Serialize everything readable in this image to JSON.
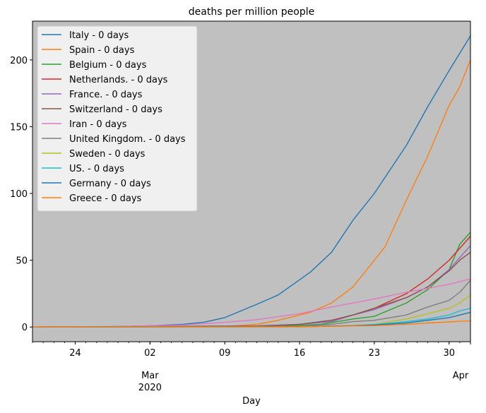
{
  "chart_data": {
    "type": "line",
    "title": "deaths per million people",
    "xlabel": "Day",
    "ylabel": "",
    "x_start": "2020-02-20",
    "x_end": "2020-04-01",
    "ylim": [
      -11,
      229
    ],
    "yticks": [
      0,
      50,
      100,
      150,
      200
    ],
    "xticks": [
      {
        "date": "2020-02-24",
        "label": "24"
      },
      {
        "date": "2020-03-02",
        "label": "02"
      },
      {
        "date": "2020-03-09",
        "label": "09"
      },
      {
        "date": "2020-03-16",
        "label": "16"
      },
      {
        "date": "2020-03-23",
        "label": "23"
      },
      {
        "date": "2020-03-30",
        "label": "30"
      }
    ],
    "month_labels": [
      {
        "date": "2020-03-02",
        "lines": [
          "Mar",
          "2020"
        ]
      },
      {
        "date": "2020-04-01",
        "lines": [
          "Apr"
        ]
      }
    ],
    "grid": false,
    "background": "#c0c0c0",
    "legend_position": "upper-left",
    "series": [
      {
        "name": "Italy - 0 days",
        "color": "#1f77b4",
        "points": [
          [
            "2020-02-20",
            0
          ],
          [
            "2020-02-28",
            0.3
          ],
          [
            "2020-03-02",
            0.9
          ],
          [
            "2020-03-05",
            2
          ],
          [
            "2020-03-07",
            3.5
          ],
          [
            "2020-03-09",
            7
          ],
          [
            "2020-03-12",
            17
          ],
          [
            "2020-03-14",
            24
          ],
          [
            "2020-03-17",
            41
          ],
          [
            "2020-03-19",
            56
          ],
          [
            "2020-03-21",
            80
          ],
          [
            "2020-03-23",
            100
          ],
          [
            "2020-03-26",
            136
          ],
          [
            "2020-03-28",
            165
          ],
          [
            "2020-03-30",
            192
          ],
          [
            "2020-04-01",
            218
          ]
        ]
      },
      {
        "name": "Spain - 0 days",
        "color": "#ff7f0e",
        "points": [
          [
            "2020-02-20",
            0
          ],
          [
            "2020-03-09",
            0.4
          ],
          [
            "2020-03-12",
            2
          ],
          [
            "2020-03-14",
            5
          ],
          [
            "2020-03-17",
            11
          ],
          [
            "2020-03-19",
            18
          ],
          [
            "2020-03-21",
            30
          ],
          [
            "2020-03-23",
            50
          ],
          [
            "2020-03-24",
            60
          ],
          [
            "2020-03-26",
            95
          ],
          [
            "2020-03-28",
            128
          ],
          [
            "2020-03-30",
            166
          ],
          [
            "2020-03-31",
            180
          ],
          [
            "2020-04-01",
            200
          ]
        ]
      },
      {
        "name": "Belgium - 0 days",
        "color": "#2ca02c",
        "points": [
          [
            "2020-02-20",
            0
          ],
          [
            "2020-03-14",
            0.5
          ],
          [
            "2020-03-18",
            2
          ],
          [
            "2020-03-21",
            6
          ],
          [
            "2020-03-23",
            8
          ],
          [
            "2020-03-26",
            18
          ],
          [
            "2020-03-28",
            28
          ],
          [
            "2020-03-30",
            43
          ],
          [
            "2020-03-31",
            62
          ],
          [
            "2020-04-01",
            71
          ]
        ]
      },
      {
        "name": "Netherlands. - 0 days",
        "color": "#d62728",
        "points": [
          [
            "2020-02-20",
            0
          ],
          [
            "2020-03-12",
            0.5
          ],
          [
            "2020-03-16",
            2
          ],
          [
            "2020-03-19",
            5
          ],
          [
            "2020-03-21",
            9
          ],
          [
            "2020-03-23",
            14
          ],
          [
            "2020-03-26",
            25
          ],
          [
            "2020-03-28",
            36
          ],
          [
            "2020-03-30",
            50
          ],
          [
            "2020-03-31",
            59
          ],
          [
            "2020-04-01",
            68
          ]
        ]
      },
      {
        "name": "France. - 0 days",
        "color": "#9467bd",
        "points": [
          [
            "2020-02-20",
            0
          ],
          [
            "2020-03-12",
            0.8
          ],
          [
            "2020-03-16",
            2
          ],
          [
            "2020-03-19",
            4
          ],
          [
            "2020-03-21",
            9
          ],
          [
            "2020-03-23",
            13
          ],
          [
            "2020-03-26",
            22
          ],
          [
            "2020-03-28",
            30
          ],
          [
            "2020-03-30",
            43
          ],
          [
            "2020-03-31",
            52
          ],
          [
            "2020-04-01",
            61
          ]
        ]
      },
      {
        "name": "Switzerland - 0 days",
        "color": "#8c564b",
        "points": [
          [
            "2020-02-20",
            0
          ],
          [
            "2020-03-12",
            0.8
          ],
          [
            "2020-03-16",
            2
          ],
          [
            "2020-03-19",
            5
          ],
          [
            "2020-03-21",
            9
          ],
          [
            "2020-03-23",
            14
          ],
          [
            "2020-03-26",
            22
          ],
          [
            "2020-03-28",
            30
          ],
          [
            "2020-03-30",
            42
          ],
          [
            "2020-03-31",
            50
          ],
          [
            "2020-04-01",
            56
          ]
        ]
      },
      {
        "name": "Iran - 0 days",
        "color": "#e377c2",
        "points": [
          [
            "2020-02-20",
            0
          ],
          [
            "2020-02-28",
            0.4
          ],
          [
            "2020-03-02",
            0.9
          ],
          [
            "2020-03-05",
            1.5
          ],
          [
            "2020-03-09",
            3.5
          ],
          [
            "2020-03-12",
            5.5
          ],
          [
            "2020-03-16",
            10
          ],
          [
            "2020-03-19",
            15
          ],
          [
            "2020-03-23",
            21
          ],
          [
            "2020-03-26",
            26
          ],
          [
            "2020-03-30",
            32
          ],
          [
            "2020-04-01",
            36
          ]
        ]
      },
      {
        "name": "United Kingdom. - 0 days",
        "color": "#7f7f7f",
        "points": [
          [
            "2020-02-20",
            0
          ],
          [
            "2020-03-16",
            0.6
          ],
          [
            "2020-03-19",
            2
          ],
          [
            "2020-03-21",
            4
          ],
          [
            "2020-03-23",
            5
          ],
          [
            "2020-03-26",
            9
          ],
          [
            "2020-03-28",
            15
          ],
          [
            "2020-03-30",
            20
          ],
          [
            "2020-03-31",
            26
          ],
          [
            "2020-04-01",
            35
          ]
        ]
      },
      {
        "name": "Sweden - 0 days",
        "color": "#bcbd22",
        "points": [
          [
            "2020-02-20",
            0
          ],
          [
            "2020-03-16",
            0.3
          ],
          [
            "2020-03-21",
            1
          ],
          [
            "2020-03-23",
            2
          ],
          [
            "2020-03-26",
            6
          ],
          [
            "2020-03-28",
            10
          ],
          [
            "2020-03-30",
            14
          ],
          [
            "2020-03-31",
            18
          ],
          [
            "2020-04-01",
            24
          ]
        ]
      },
      {
        "name": "US. - 0 days",
        "color": "#17becf",
        "points": [
          [
            "2020-02-20",
            0
          ],
          [
            "2020-03-16",
            0.2
          ],
          [
            "2020-03-21",
            1
          ],
          [
            "2020-03-23",
            1.8
          ],
          [
            "2020-03-26",
            4
          ],
          [
            "2020-03-28",
            6
          ],
          [
            "2020-03-30",
            9
          ],
          [
            "2020-03-31",
            12
          ],
          [
            "2020-04-01",
            14
          ]
        ]
      },
      {
        "name": "Germany - 0 days",
        "color": "#1f77b4",
        "points": [
          [
            "2020-02-20",
            0
          ],
          [
            "2020-03-16",
            0.2
          ],
          [
            "2020-03-21",
            1
          ],
          [
            "2020-03-23",
            1.5
          ],
          [
            "2020-03-26",
            3
          ],
          [
            "2020-03-28",
            5
          ],
          [
            "2020-03-30",
            7
          ],
          [
            "2020-03-31",
            9
          ],
          [
            "2020-04-01",
            11
          ]
        ]
      },
      {
        "name": "Greece - 0 days",
        "color": "#ff7f0e",
        "points": [
          [
            "2020-02-20",
            0
          ],
          [
            "2020-03-16",
            0.1
          ],
          [
            "2020-03-21",
            0.8
          ],
          [
            "2020-03-23",
            1
          ],
          [
            "2020-03-26",
            2
          ],
          [
            "2020-03-28",
            3
          ],
          [
            "2020-03-30",
            3.8
          ],
          [
            "2020-03-31",
            4.3
          ],
          [
            "2020-04-01",
            4.5
          ]
        ]
      }
    ]
  }
}
